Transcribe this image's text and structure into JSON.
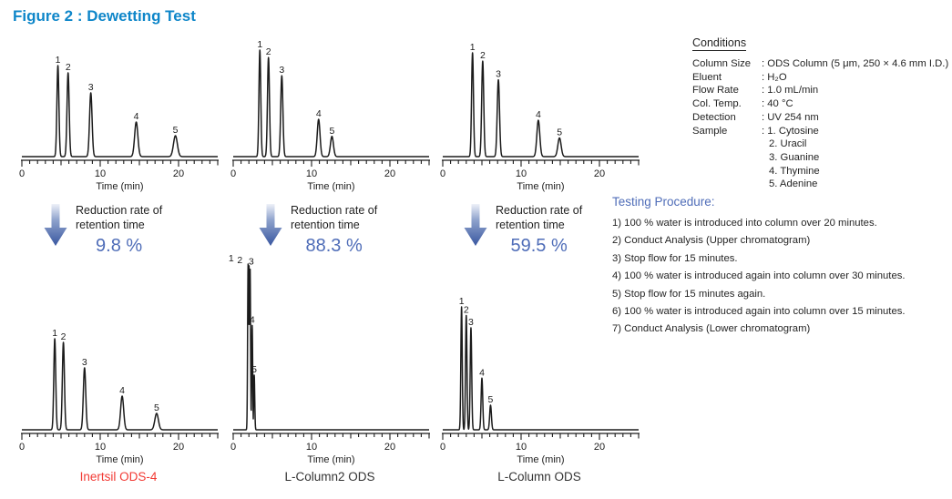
{
  "title": "Figure 2 : Dewetting Test",
  "colors": {
    "title_blue": "#0e86c9",
    "accent_blue": "#4f6db8",
    "red": "#f23a34",
    "trace_black": "#1b1b1b",
    "arrow_gradient_top": "#e9edf7",
    "arrow_gradient_bottom": "#35539e"
  },
  "conditions": {
    "heading": "Conditions",
    "rows": [
      {
        "label": "Column Size",
        "value": ": ODS Column (5 μm, 250 × 4.6 mm I.D.)"
      },
      {
        "label": "Eluent",
        "value": ": H₂O"
      },
      {
        "label": "Flow Rate",
        "value": ": 1.0 mL/min"
      },
      {
        "label": "Col. Temp.",
        "value": ": 40 °C"
      },
      {
        "label": "Detection",
        "value": ": UV 254 nm"
      },
      {
        "label": "Sample",
        "value": ": 1. Cytosine"
      }
    ],
    "sample_continued": [
      "2. Uracil",
      "3. Guanine",
      "4. Thymine",
      "5. Adenine"
    ]
  },
  "procedure": {
    "heading": "Testing Procedure:",
    "steps": [
      "1) 100 % water is introduced into column over 20 minutes.",
      "2) Conduct Analysis (Upper chromatogram)",
      "3) Stop flow for 15 minutes.",
      "4) 100 % water is introduced again into column over 30 minutes.",
      "5) Stop flow for 15 minutes again.",
      "6) 100 % water is introduced again into column over 15 minutes.",
      "7) Conduct Analysis (Lower chromatogram)"
    ]
  },
  "reductions": [
    {
      "line1": "Reduction rate of",
      "line2": "retention time",
      "value": "9.8 %"
    },
    {
      "line1": "Reduction rate of",
      "line2": "retention time",
      "value": "88.3 %"
    },
    {
      "line1": "Reduction rate of",
      "line2": "retention time",
      "value": "59.5 %"
    }
  ],
  "columns": [
    {
      "name": "Inertsil ODS-4"
    },
    {
      "name": "L-Column2 ODS"
    },
    {
      "name": "L-Column ODS"
    }
  ],
  "chart_data": [
    {
      "id": "inertsil-ods4-upper",
      "position": "top-left",
      "column": "Inertsil ODS-4",
      "role": "upper",
      "type": "line",
      "xlabel": "Time (min)",
      "xlim": [
        0,
        25
      ],
      "xticks": [
        0,
        10,
        20
      ],
      "peaks": [
        {
          "n": "1",
          "t": 4.6,
          "h": 1.0
        },
        {
          "n": "2",
          "t": 5.9,
          "h": 0.92
        },
        {
          "n": "3",
          "t": 8.8,
          "h": 0.7
        },
        {
          "n": "4",
          "t": 14.6,
          "h": 0.38
        },
        {
          "n": "5",
          "t": 19.6,
          "h": 0.23
        }
      ]
    },
    {
      "id": "lcolumn2-ods-upper",
      "position": "top-middle",
      "column": "L-Column2 ODS",
      "role": "upper",
      "type": "line",
      "xlabel": "Time (min)",
      "xlim": [
        0,
        25
      ],
      "xticks": [
        0,
        10,
        20
      ],
      "peaks": [
        {
          "n": "1",
          "t": 3.4,
          "h": 1.0
        },
        {
          "n": "2",
          "t": 4.5,
          "h": 0.93
        },
        {
          "n": "3",
          "t": 6.2,
          "h": 0.76
        },
        {
          "n": "4",
          "t": 10.9,
          "h": 0.35
        },
        {
          "n": "5",
          "t": 12.6,
          "h": 0.19
        }
      ]
    },
    {
      "id": "lcolumn-ods-upper",
      "position": "top-right",
      "column": "L-Column ODS",
      "role": "upper",
      "type": "line",
      "xlabel": "Time (min)",
      "xlim": [
        0,
        25
      ],
      "xticks": [
        0,
        10,
        20
      ],
      "peaks": [
        {
          "n": "1",
          "t": 3.8,
          "h": 1.0
        },
        {
          "n": "2",
          "t": 5.1,
          "h": 0.92
        },
        {
          "n": "3",
          "t": 7.1,
          "h": 0.74
        },
        {
          "n": "4",
          "t": 12.2,
          "h": 0.35
        },
        {
          "n": "5",
          "t": 14.9,
          "h": 0.18
        }
      ]
    },
    {
      "id": "inertsil-ods4-lower",
      "position": "bottom-left",
      "column": "Inertsil ODS-4",
      "role": "lower",
      "type": "line",
      "xlabel": "Time (min)",
      "xlim": [
        0,
        25
      ],
      "xticks": [
        0,
        10,
        20
      ],
      "peaks": [
        {
          "n": "1",
          "t": 4.2,
          "h": 1.0
        },
        {
          "n": "2",
          "t": 5.3,
          "h": 0.96
        },
        {
          "n": "3",
          "t": 8.0,
          "h": 0.68
        },
        {
          "n": "4",
          "t": 12.8,
          "h": 0.37
        },
        {
          "n": "5",
          "t": 17.2,
          "h": 0.18
        }
      ]
    },
    {
      "id": "lcolumn2-ods-lower",
      "position": "bottom-middle",
      "column": "L-Column2 ODS",
      "role": "lower",
      "type": "line",
      "xlabel": "Time (min)",
      "xlim": [
        0,
        25
      ],
      "xticks": [
        0,
        10,
        20
      ],
      "peak_width_scale": 0.6,
      "peaks": [
        {
          "n": "1",
          "t": 1.9,
          "h": 1.0,
          "lt": -0.25
        },
        {
          "n": "2",
          "t": 2.02,
          "h": 0.99,
          "lt": 0.85
        },
        {
          "n": "3",
          "t": 2.15,
          "h": 0.98,
          "lt": 2.3
        },
        {
          "n": "4",
          "t": 2.42,
          "h": 0.63
        },
        {
          "n": "5",
          "t": 2.68,
          "h": 0.33
        }
      ]
    },
    {
      "id": "lcolumn-ods-lower",
      "position": "bottom-right",
      "column": "L-Column ODS",
      "role": "lower",
      "type": "line",
      "xlabel": "Time (min)",
      "xlim": [
        0,
        25
      ],
      "xticks": [
        0,
        10,
        20
      ],
      "peak_width_scale": 0.8,
      "peaks": [
        {
          "n": "1",
          "t": 2.4,
          "h": 1.0
        },
        {
          "n": "2",
          "t": 3.0,
          "h": 0.93
        },
        {
          "n": "3",
          "t": 3.6,
          "h": 0.83
        },
        {
          "n": "4",
          "t": 5.0,
          "h": 0.42
        },
        {
          "n": "5",
          "t": 6.1,
          "h": 0.2
        }
      ]
    }
  ]
}
